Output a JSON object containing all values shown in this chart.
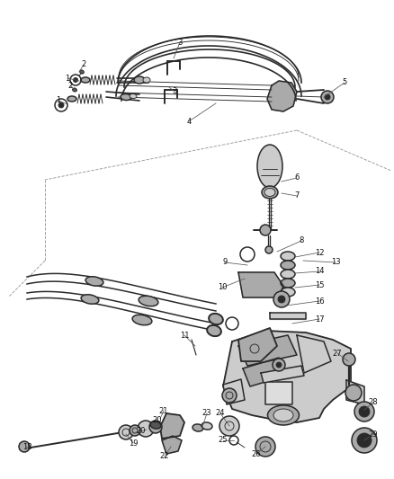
{
  "bg_color": "#ffffff",
  "line_color": "#2a2a2a",
  "fig_width": 4.38,
  "fig_height": 5.33,
  "dpi": 100,
  "part_gray": "#888888",
  "part_light": "#cccccc",
  "part_mid": "#aaaaaa",
  "part_dark": "#555555",
  "leader_color": "#555555",
  "label_fs": 6.0,
  "lw_main": 1.1,
  "lw_thin": 0.65,
  "lw_thick": 1.8
}
